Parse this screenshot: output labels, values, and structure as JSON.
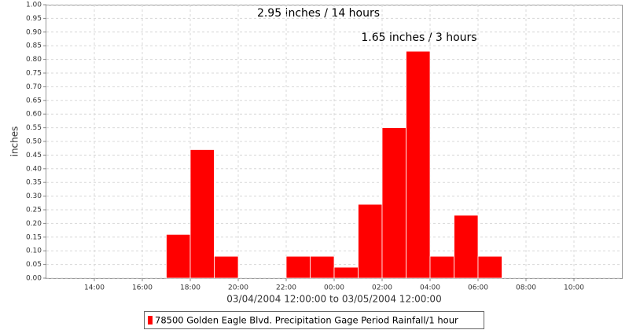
{
  "chart_data": {
    "type": "histogram",
    "annotations": [
      "2.95 inches / 14 hours",
      "1.65 inches / 3 hours"
    ],
    "xlabel": "03/04/2004 12:00:00 to 03/05/2004 12:00:00",
    "ylabel": "inches",
    "bins": [
      5,
      6,
      7,
      8,
      9,
      10,
      11,
      12,
      13,
      14,
      15,
      16,
      17,
      18,
      19
    ],
    "series": [
      {
        "name": "78500 Golden Eagle Blvd. Precipitation Gage Period Rainfall/1 hour",
        "color": "#ff0000",
        "values": [
          0.16,
          0.47,
          0.08,
          0,
          0,
          0.08,
          0.08,
          0.04,
          0.27,
          0.55,
          0.83,
          0.08,
          0.23,
          0.08
        ]
      }
    ],
    "xlim": [
      0,
      24
    ],
    "xticks": [
      {
        "value": 2,
        "label": "14:00"
      },
      {
        "value": 4,
        "label": "16:00"
      },
      {
        "value": 6,
        "label": "18:00"
      },
      {
        "value": 8,
        "label": "20:00"
      },
      {
        "value": 10,
        "label": "22:00"
      },
      {
        "value": 12,
        "label": "00:00"
      },
      {
        "value": 14,
        "label": "02:00"
      },
      {
        "value": 16,
        "label": "04:00"
      },
      {
        "value": 18,
        "label": "06:00"
      },
      {
        "value": 20,
        "label": "08:00"
      },
      {
        "value": 22,
        "label": "10:00"
      }
    ],
    "ylim": [
      0,
      1
    ],
    "yticks": [
      {
        "value": 0,
        "label": "0.00"
      },
      {
        "value": 0.05,
        "label": "0.05"
      },
      {
        "value": 0.1,
        "label": "0.10"
      },
      {
        "value": 0.15,
        "label": "0.15"
      },
      {
        "value": 0.2,
        "label": "0.20"
      },
      {
        "value": 0.25,
        "label": "0.25"
      },
      {
        "value": 0.3,
        "label": "0.30"
      },
      {
        "value": 0.35,
        "label": "0.35"
      },
      {
        "value": 0.4,
        "label": "0.40"
      },
      {
        "value": 0.45,
        "label": "0.45"
      },
      {
        "value": 0.5,
        "label": "0.50"
      },
      {
        "value": 0.55,
        "label": "0.55"
      },
      {
        "value": 0.6,
        "label": "0.60"
      },
      {
        "value": 0.65,
        "label": "0.65"
      },
      {
        "value": 0.7,
        "label": "0.70"
      },
      {
        "value": 0.75,
        "label": "0.75"
      },
      {
        "value": 0.8,
        "label": "0.80"
      },
      {
        "value": 0.85,
        "label": "0.85"
      },
      {
        "value": 0.9,
        "label": "0.90"
      },
      {
        "value": 0.95,
        "label": "0.95"
      },
      {
        "value": 1,
        "label": "1.00"
      }
    ],
    "grid": true
  }
}
